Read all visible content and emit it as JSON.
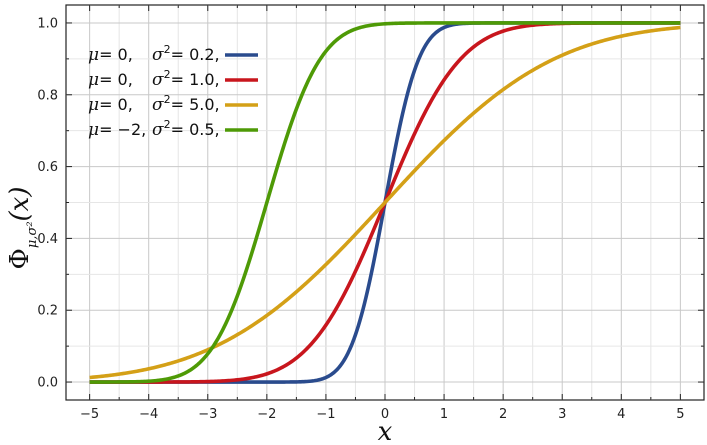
{
  "chart_data": {
    "type": "line",
    "xlim": [
      -5.4,
      5.4
    ],
    "ylim": [
      -0.05,
      1.05
    ],
    "x_ticks": [
      -5,
      -4,
      -3,
      -2,
      -1,
      0,
      1,
      2,
      3,
      4,
      5
    ],
    "x_tick_labels": [
      "−5",
      "−4",
      "−3",
      "−2",
      "−1",
      "0",
      "1",
      "2",
      "3",
      "4",
      "5"
    ],
    "y_ticks": [
      0.0,
      0.2,
      0.4,
      0.6,
      0.8,
      1.0
    ],
    "y_tick_labels": [
      "0.0",
      "0.2",
      "0.4",
      "0.6",
      "0.8",
      "1.0"
    ],
    "xlabel": "x",
    "ylabel": {
      "main": "Φ",
      "sub": "μ,σ²",
      "arg": "(x)"
    },
    "grid": true,
    "legend_position": "top-left",
    "series": [
      {
        "legend_mu": "μ",
        "legend_mu_val": "= 0,",
        "legend_sigma": "σ",
        "legend_sigma_val": "= 0.2,",
        "mu": 0,
        "sigma2": 0.2,
        "color": "#2a4b8d"
      },
      {
        "legend_mu": "μ",
        "legend_mu_val": "= 0,",
        "legend_sigma": "σ",
        "legend_sigma_val": "= 1.0,",
        "mu": 0,
        "sigma2": 1.0,
        "color": "#c8161d"
      },
      {
        "legend_mu": "μ",
        "legend_mu_val": "= 0,",
        "legend_sigma": "σ",
        "legend_sigma_val": "= 5.0,",
        "mu": 0,
        "sigma2": 5.0,
        "color": "#d4a017"
      },
      {
        "legend_mu": "μ",
        "legend_mu_val": "= −2,",
        "legend_sigma": "σ",
        "legend_sigma_val": "= 0.5,",
        "mu": -2,
        "sigma2": 0.5,
        "color": "#4e9a06"
      }
    ],
    "legend_sigma_sup": "2"
  }
}
